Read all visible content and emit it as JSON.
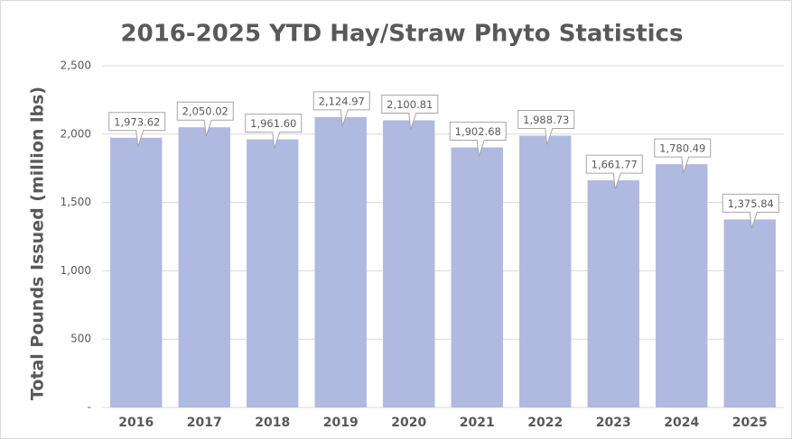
{
  "chart_data": {
    "type": "bar",
    "title": "2016-2025 YTD Hay/Straw Phyto Statistics",
    "y_label": "Total Pounds Issued (million lbs)",
    "categories": [
      "2016",
      "2017",
      "2018",
      "2019",
      "2020",
      "2021",
      "2022",
      "2023",
      "2024",
      "2025"
    ],
    "values": [
      1973.62,
      2050.02,
      1961.6,
      2124.97,
      2100.81,
      1902.68,
      1988.73,
      1661.77,
      1780.49,
      1375.84
    ],
    "value_labels": [
      "1,973.62",
      "2,050.02",
      "1,961.60",
      "2,124.97",
      "2,100.81",
      "1,902.68",
      "1,988.73",
      "1,661.77",
      "1,780.49",
      "1,375.84"
    ],
    "color": "#b0b9e0",
    "ylim": [
      0,
      2500
    ],
    "yticks": [
      {
        "value": 0,
        "label": "-"
      },
      500,
      {
        "value": 1000,
        "label": "1,000"
      },
      {
        "value": 1500,
        "label": "1,500"
      },
      {
        "value": 2000,
        "label": "2,000"
      },
      {
        "value": 2500,
        "label": "2,500"
      }
    ],
    "grid": true
  }
}
